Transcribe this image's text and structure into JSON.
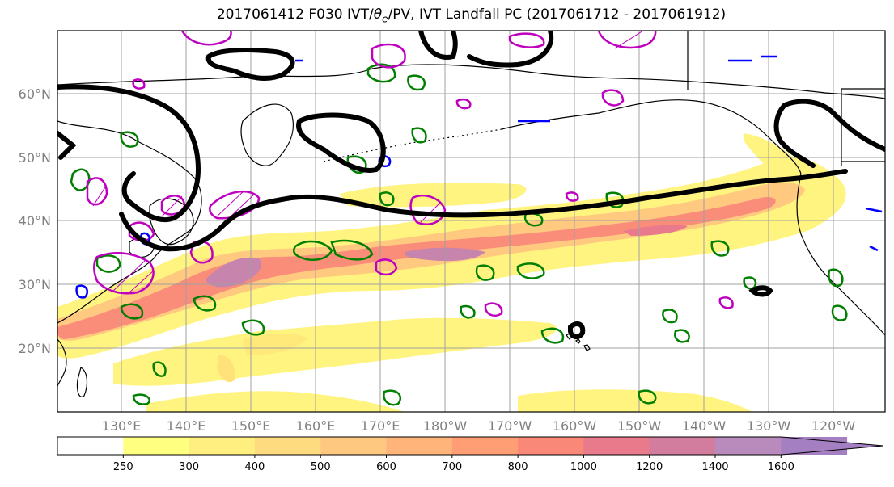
{
  "title": "2017061412 F030 IVT/θe/PV, IVT Landfall PC (2017061712 - 2017061912)",
  "title_parts": {
    "before": "2017061412 F030 IVT/",
    "theta": "θ",
    "sub": "e",
    "after": "/PV, IVT Landfall PC (2017061712 - 2017061912)"
  },
  "map": {
    "lat_labels": [
      "20°N",
      "30°N",
      "40°N",
      "50°N",
      "60°N"
    ],
    "lon_labels": [
      "130°E",
      "140°E",
      "150°E",
      "160°E",
      "170°E",
      "180°W",
      "170°W",
      "160°W",
      "150°W",
      "140°W",
      "130°W",
      "120°W"
    ]
  },
  "legend": {
    "ticks": [
      "250",
      "300",
      "400",
      "500",
      "600",
      "700",
      "800",
      "1000",
      "1200",
      "1400",
      "1600"
    ],
    "colors": [
      "#ffffff",
      "#ffff80",
      "#ffee80",
      "#ffdb80",
      "#ffc880",
      "#ffb47a",
      "#ff9e74",
      "#fa8878",
      "#e97a8c",
      "#d37d9e",
      "#b98bbd",
      "#a47fc2"
    ]
  },
  "colors": {
    "ivt_fill": "#fde36b",
    "ivt_core": "#e97a8c",
    "pv_green": "#007f00",
    "theta_magenta": "#bf00bf",
    "blue_contour": "#0000ff",
    "pc_black": "#000000",
    "grid": "#a0a0a0",
    "label_gray": "#808080"
  }
}
